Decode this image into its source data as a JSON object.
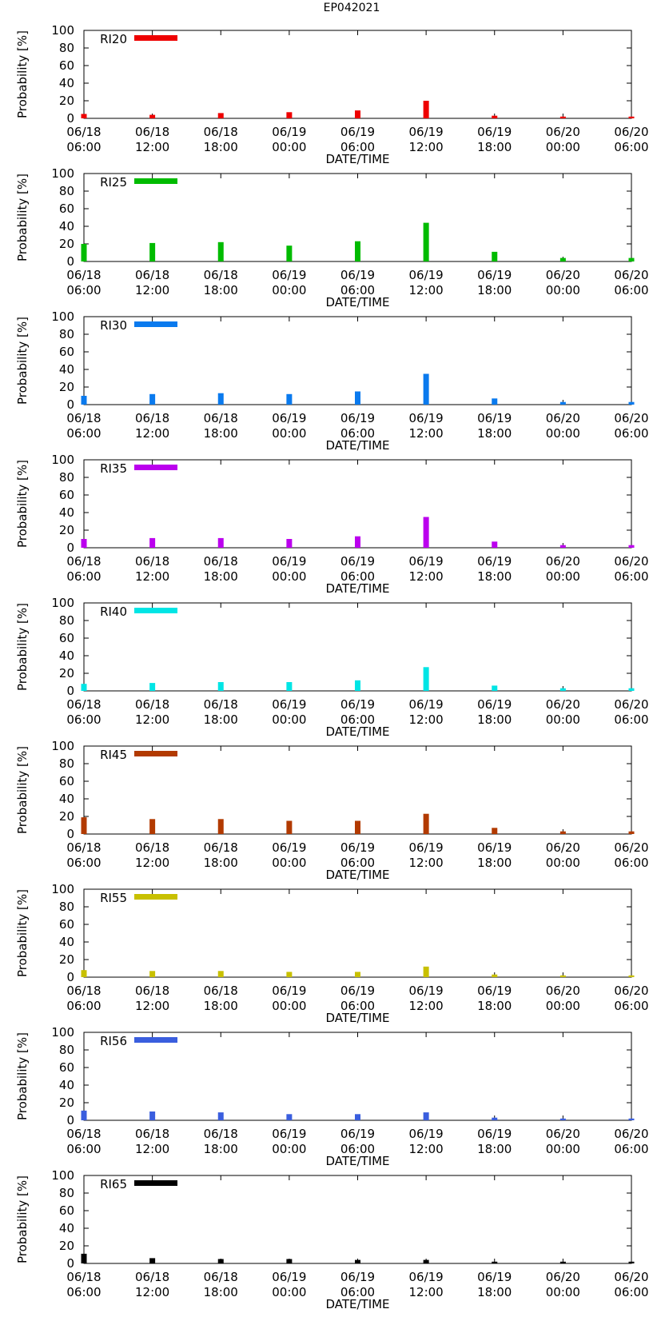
{
  "title": "EP042021",
  "chart_data": {
    "type": "bar",
    "title": "EP042021",
    "xlabel": "DATE/TIME",
    "ylabel": "Probability [%]",
    "ylim": [
      0,
      100
    ],
    "yticks": [
      0,
      20,
      40,
      60,
      80,
      100
    ],
    "grid": false,
    "legend_position": "top-left",
    "x_ticks": [
      {
        "line1": "06/18",
        "line2": "06:00"
      },
      {
        "line1": "06/18",
        "line2": "12:00"
      },
      {
        "line1": "06/18",
        "line2": "18:00"
      },
      {
        "line1": "06/19",
        "line2": "00:00"
      },
      {
        "line1": "06/19",
        "line2": "06:00"
      },
      {
        "line1": "06/19",
        "line2": "12:00"
      },
      {
        "line1": "06/19",
        "line2": "18:00"
      },
      {
        "line1": "06/20",
        "line2": "00:00"
      },
      {
        "line1": "06/20",
        "line2": "06:00"
      }
    ],
    "panels": [
      {
        "name": "RI20",
        "color": "#ee0000",
        "values": [
          5,
          4,
          6,
          7,
          9,
          20,
          3,
          2,
          2
        ]
      },
      {
        "name": "RI25",
        "color": "#00bb00",
        "values": [
          20,
          21,
          22,
          18,
          23,
          44,
          11,
          4,
          4
        ]
      },
      {
        "name": "RI30",
        "color": "#0a7aee",
        "values": [
          10,
          12,
          13,
          12,
          15,
          35,
          7,
          3,
          3
        ]
      },
      {
        "name": "RI35",
        "color": "#bb00ee",
        "values": [
          10,
          11,
          11,
          10,
          13,
          35,
          7,
          3,
          3
        ]
      },
      {
        "name": "RI40",
        "color": "#00e5e5",
        "values": [
          8,
          9,
          10,
          10,
          12,
          27,
          6,
          3,
          3
        ]
      },
      {
        "name": "RI45",
        "color": "#b23a00",
        "values": [
          19,
          17,
          17,
          15,
          15,
          23,
          7,
          3,
          3
        ]
      },
      {
        "name": "RI55",
        "color": "#c8c000",
        "values": [
          8,
          7,
          7,
          6,
          6,
          12,
          3,
          2,
          2
        ]
      },
      {
        "name": "RI56",
        "color": "#3a5ede",
        "values": [
          11,
          10,
          9,
          7,
          7,
          9,
          3,
          2,
          2
        ]
      },
      {
        "name": "RI65",
        "color": "#000000",
        "values": [
          11,
          6,
          5,
          5,
          4,
          4,
          2,
          2,
          2
        ]
      }
    ]
  }
}
